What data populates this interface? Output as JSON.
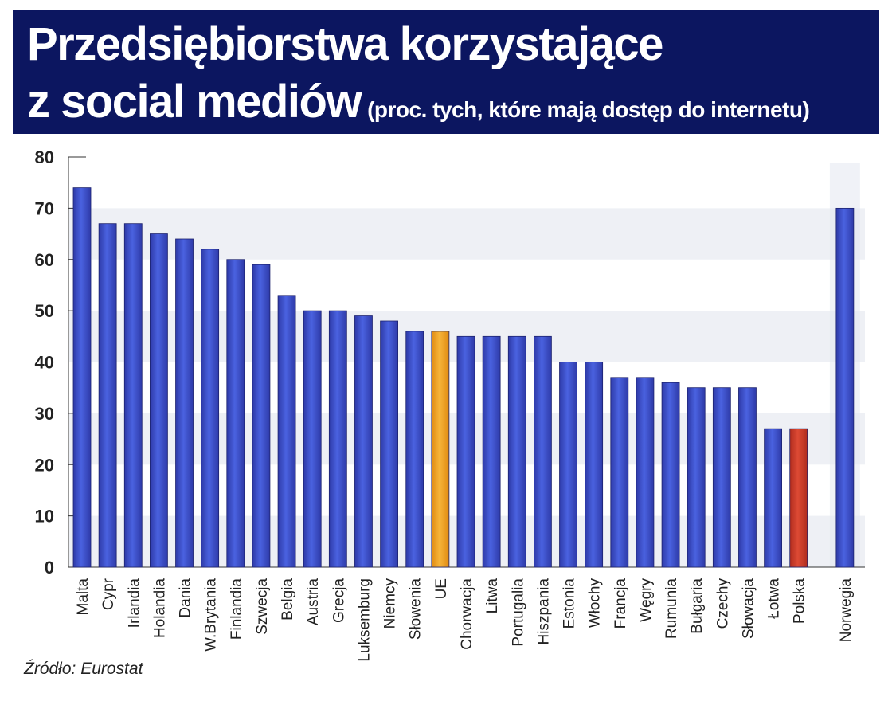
{
  "header": {
    "title_line1": "Przedsiębiorstwa korzystające",
    "title_line2": "z social mediów",
    "subtitle": "(proc. tych, które mają dostęp do internetu)"
  },
  "source": "Źródło: Eurostat",
  "colors": {
    "header_bg": "#0c1660",
    "bar_default": "#3a4ec8",
    "bar_eu": "#f0a020",
    "bar_poland": "#cc3a28",
    "band": "#e8ebf2"
  },
  "chart_data": {
    "type": "bar",
    "ylim": [
      0,
      80
    ],
    "yticks": [
      0,
      10,
      20,
      30,
      40,
      50,
      60,
      70,
      80
    ],
    "grid": "alternating horizontal bands",
    "categories": [
      "Malta",
      "Cypr",
      "Irlandia",
      "Holandia",
      "Dania",
      "W.Brytania",
      "Finlandia",
      "Szwecja",
      "Belgia",
      "Austria",
      "Grecja",
      "Luksemburg",
      "Niemcy",
      "Słowenia",
      "UE",
      "Chorwacja",
      "Litwa",
      "Portugalia",
      "Hiszpania",
      "Estonia",
      "Włochy",
      "Francja",
      "Węgry",
      "Rumunia",
      "Bułgaria",
      "Czechy",
      "Słowacja",
      "Łotwa",
      "Polska",
      "Norwegia"
    ],
    "values": [
      74,
      67,
      67,
      65,
      64,
      62,
      60,
      59,
      53,
      50,
      50,
      49,
      48,
      46,
      46,
      45,
      45,
      45,
      45,
      40,
      40,
      37,
      37,
      36,
      35,
      35,
      35,
      27,
      27,
      70
    ],
    "highlights": {
      "UE": "#f0a020",
      "Polska": "#cc3a28"
    },
    "separated_category": "Norwegia"
  }
}
